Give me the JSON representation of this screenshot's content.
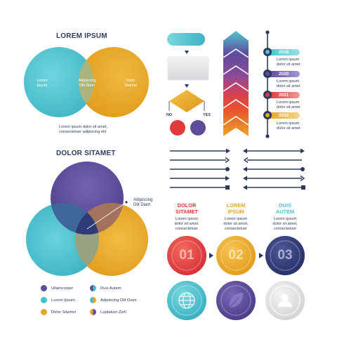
{
  "venn1": {
    "title": "LOREM IPSUM",
    "left_label": "Lorem\nIpsum",
    "center_label": "Adipiscing\nDlit Diam",
    "right_label": "Dolor\nSitamet",
    "caption_line1": "Lorem ipsum dolor sit amet,",
    "caption_line2": "consectetuer adipiscing elit",
    "colors": {
      "left": "#4fc3cf",
      "right": "#e8a628",
      "overlap": "#a9b57a"
    }
  },
  "venn2": {
    "title": "DOLOR SITAMET",
    "callout_line1": "Adipiscing",
    "callout_line2": "Dlit Diam",
    "colors": {
      "top": "#5e4c9a",
      "left": "#46bdcc",
      "right": "#e8a628",
      "center": "#2f3b78"
    },
    "legend": [
      {
        "label": "Ullamcorper",
        "color": "#5e4c9a"
      },
      {
        "label": "Duis Autem",
        "color": "#3c6a9a"
      },
      {
        "label": "Lorem Ipsum",
        "color": "#46bdcc"
      },
      {
        "label": "Adipiscing Dlit Diam",
        "color": "#8da18a"
      },
      {
        "label": "Dolor Sitamet",
        "color": "#e8a628"
      },
      {
        "label": "Luptatum Zzril",
        "color": "#b07a52"
      }
    ]
  },
  "flowchart": {
    "no_label": "NO",
    "yes_label": "YES",
    "colors": {
      "start": "#4fc3cf",
      "box": "#e4e4e6",
      "diamond": "#e8a628",
      "no": "#e03a3a",
      "yes": "#5e4c9a"
    }
  },
  "chevron_colors": [
    "#4fc3cf",
    "#5e4c9a",
    "#7a4a9e",
    "#b44a7a",
    "#e03a3a",
    "#ea6a2a",
    "#e8a628"
  ],
  "timeline": {
    "items": [
      {
        "year": "2019",
        "line1": "Lorem ipsum",
        "line2": "dolor sit amet",
        "color": "#4fc3cf"
      },
      {
        "year": "2020",
        "line1": "Lorem ipsum",
        "line2": "dolor sit amet",
        "color": "#5e4c9a"
      },
      {
        "year": "2021",
        "line1": "Lorem ipsum",
        "line2": "dolor sit amet",
        "color": "#e03a3a"
      },
      {
        "year": "2022",
        "line1": "Lorem ipsum",
        "line2": "dolor sit amet",
        "color": "#e8a628"
      }
    ],
    "axis_color": "#2b3a5c"
  },
  "arrows_color": "#2b3a5c",
  "steps": [
    {
      "title_line1": "DOLOR",
      "title_line2": "SITAMET",
      "desc1": "Lorem ipsum",
      "desc2": "dolor sit amet,",
      "desc3": "consectetuer",
      "number": "01",
      "color": "#e03a3a",
      "icon": "globe-icon",
      "icon_color": "#4fc3cf"
    },
    {
      "title_line1": "LOREM",
      "title_line2": "IPSUM",
      "desc1": "Lorem ipsum",
      "desc2": "dolor sit amet,",
      "desc3": "consectetuer",
      "number": "02",
      "color": "#e8a628",
      "icon": "leaf-icon",
      "icon_color": "#5e4c9a"
    },
    {
      "title_line1": "DUIS",
      "title_line2": "AUTEM",
      "desc1": "Lorem ipsum",
      "desc2": "dolor sit amet,",
      "desc3": "consectetuer",
      "number": "03",
      "color": "#2f3b78",
      "icon": "user-icon",
      "icon_color": "#e4e4e6"
    }
  ]
}
